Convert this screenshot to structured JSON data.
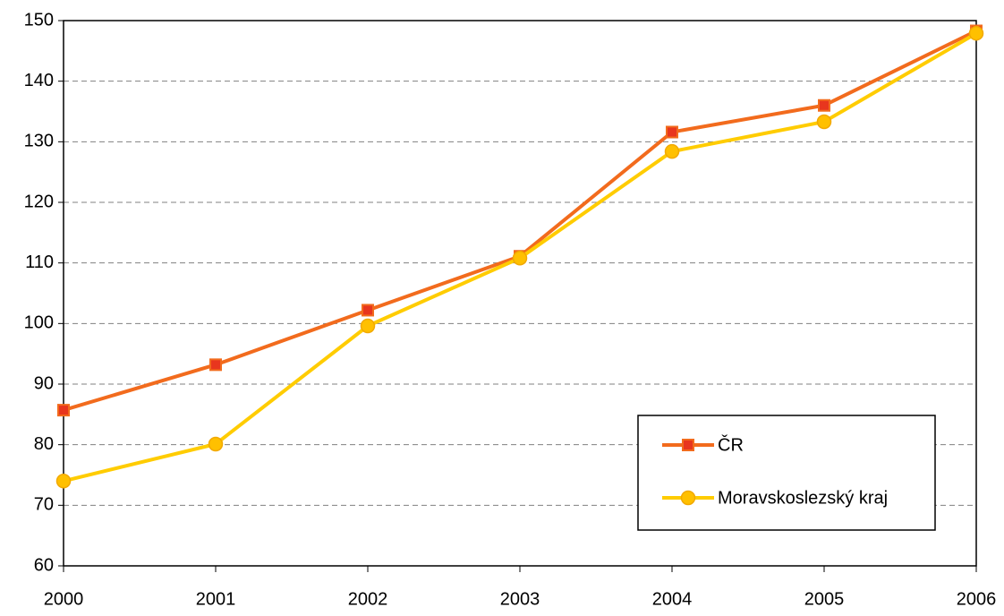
{
  "chart_data": {
    "type": "line",
    "x": [
      2000,
      2001,
      2002,
      2003,
      2004,
      2005,
      2006
    ],
    "xlim": [
      2000,
      2006
    ],
    "xticks": [
      2000,
      2001,
      2002,
      2003,
      2004,
      2005,
      2006
    ],
    "ylim": [
      60,
      150
    ],
    "yticks": [
      60,
      70,
      80,
      90,
      100,
      110,
      120,
      130,
      140,
      150
    ],
    "grid": true,
    "legend": "lower right",
    "series": [
      {
        "name": "ČR",
        "color": "#f26b1d",
        "marker": "square",
        "marker_color": "#e8361e",
        "values": [
          85.7,
          93.2,
          102.2,
          111.1,
          131.6,
          136.0,
          148.3
        ]
      },
      {
        "name": "Moravskoslezský kraj",
        "color": "#ffcc00",
        "marker": "circle",
        "marker_color": "#ffc000",
        "values": [
          74.0,
          80.1,
          99.6,
          110.8,
          128.4,
          133.3,
          147.9
        ]
      }
    ]
  }
}
